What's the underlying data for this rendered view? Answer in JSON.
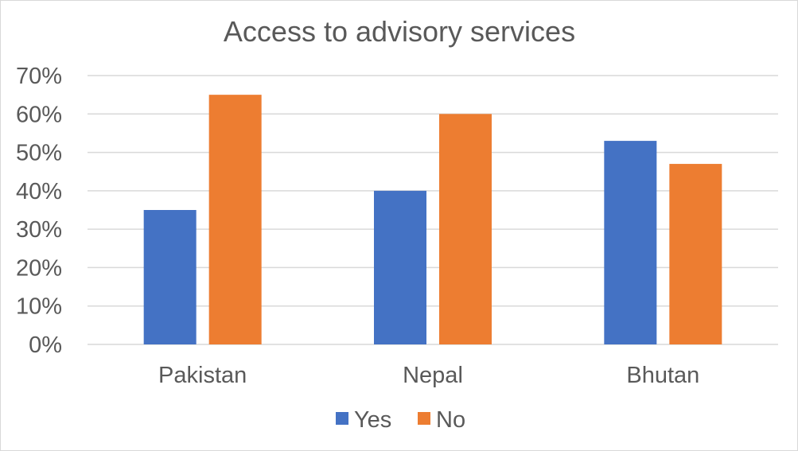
{
  "chart_data": {
    "type": "bar",
    "title": "Access to advisory services",
    "categories": [
      "Pakistan",
      "Nepal",
      "Bhutan"
    ],
    "series": [
      {
        "name": "Yes",
        "values": [
          35,
          40,
          53
        ],
        "color": "#4472C4"
      },
      {
        "name": "No",
        "values": [
          65,
          60,
          47
        ],
        "color": "#ED7D31"
      }
    ],
    "ylim": [
      0,
      70
    ],
    "yticks": [
      0,
      10,
      20,
      30,
      40,
      50,
      60,
      70
    ],
    "ytick_labels": [
      "0%",
      "10%",
      "20%",
      "30%",
      "40%",
      "50%",
      "60%",
      "70%"
    ],
    "xlabel": "",
    "ylabel": "",
    "grid": true,
    "legend_position": "bottom"
  }
}
